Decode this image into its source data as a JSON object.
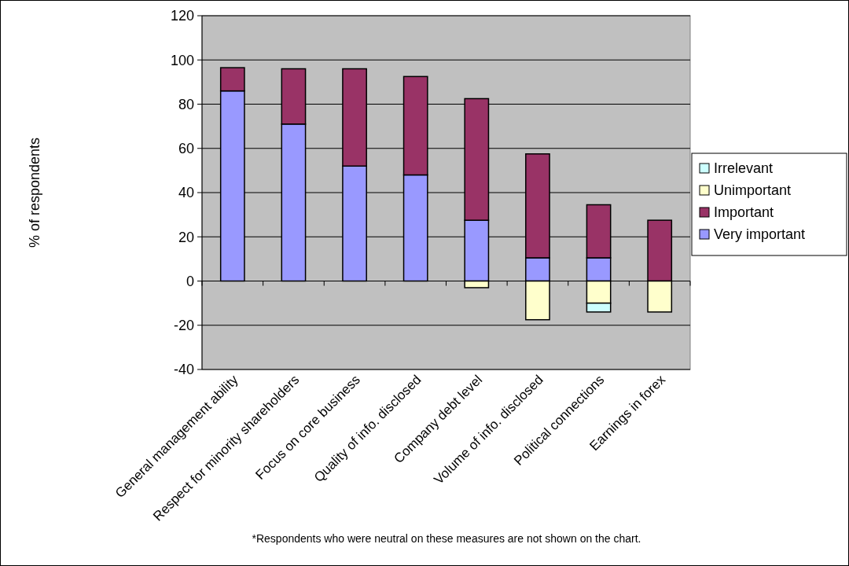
{
  "chart_data": {
    "type": "bar",
    "stacked": true,
    "ylabel": "% of respondents",
    "categories": [
      "General management ability",
      "Respect for minority shareholders",
      "Focus on core business",
      "Quality of info. disclosed",
      "Company debt level",
      "Volume of info. disclosed",
      "Political connections",
      "Earnings in forex"
    ],
    "series": [
      {
        "name": "Very important",
        "color": "#9999ff",
        "values": [
          86,
          71,
          52,
          48,
          27.5,
          10.5,
          10.5,
          null
        ]
      },
      {
        "name": "Important",
        "color": "#993366",
        "values": [
          10.5,
          25,
          44,
          44.5,
          55,
          47,
          24,
          27.5
        ]
      },
      {
        "name": "Unimportant",
        "color": "#ffffcc",
        "values": [
          null,
          null,
          null,
          null,
          -3,
          -17.5,
          -10,
          -14
        ]
      },
      {
        "name": "Irrelevant",
        "color": "#ccffff",
        "values": [
          null,
          null,
          null,
          null,
          null,
          null,
          -4,
          null
        ]
      }
    ],
    "ylim": [
      -40,
      120
    ],
    "yticks": [
      -40,
      -20,
      0,
      20,
      40,
      60,
      80,
      100,
      120
    ],
    "grid": "y",
    "legend": "right",
    "annotations": [
      "*Respondents who were neutral on these measures are not shown on the chart."
    ]
  }
}
